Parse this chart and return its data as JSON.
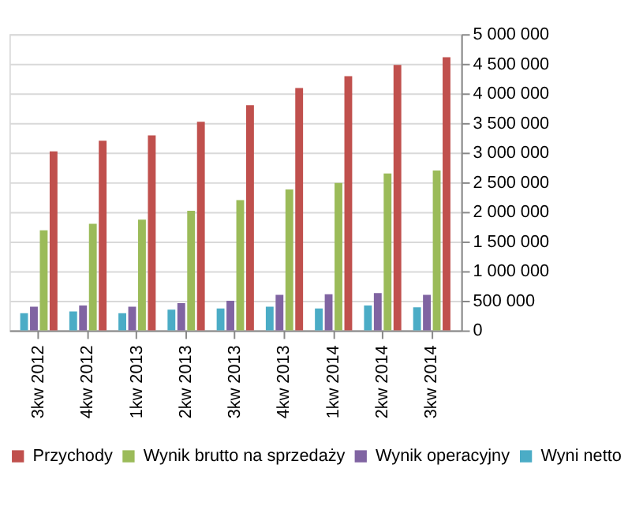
{
  "chart_data": {
    "type": "bar",
    "categories": [
      "3kw 2012",
      "4kw 2012",
      "1kw 2013",
      "2kw 2013",
      "3kw 2013",
      "4kw 2013",
      "1kw 2014",
      "2kw 2014",
      "3kw 2014"
    ],
    "series": [
      {
        "name": "Przychody",
        "color": "#c0504d",
        "values": [
          3020000,
          3200000,
          3290000,
          3520000,
          3800000,
          4090000,
          4290000,
          4480000,
          4610000
        ]
      },
      {
        "name": "Wynik brutto na sprzedaży",
        "color": "#9bbb59",
        "values": [
          1690000,
          1800000,
          1870000,
          2020000,
          2200000,
          2380000,
          2490000,
          2650000,
          2700000
        ]
      },
      {
        "name": "Wynik operacyjny",
        "color": "#8064a2",
        "values": [
          400000,
          420000,
          400000,
          460000,
          500000,
          600000,
          610000,
          630000,
          600000
        ]
      },
      {
        "name": "Wyni netto",
        "color": "#4bacc6",
        "values": [
          290000,
          320000,
          290000,
          350000,
          370000,
          400000,
          370000,
          420000,
          390000
        ]
      }
    ],
    "ylim": [
      0,
      5000000
    ],
    "yticks": [
      0,
      {
        "value": 500000,
        "label": "500 000"
      },
      {
        "value": 1000000,
        "label": "1 000 000"
      },
      {
        "value": 1500000,
        "label": "1 500 000"
      },
      {
        "value": 2000000,
        "label": "2 000 000"
      },
      {
        "value": 2500000,
        "label": "2 500 000"
      },
      {
        "value": 3000000,
        "label": "3 000 000"
      },
      {
        "value": 3500000,
        "label": "3 500 000"
      },
      {
        "value": 4000000,
        "label": "4 000 000"
      },
      {
        "value": 4500000,
        "label": "4 500 000"
      },
      {
        "value": 5000000,
        "label": "5 000 000"
      }
    ],
    "grid": "y",
    "legend": "bottom"
  }
}
